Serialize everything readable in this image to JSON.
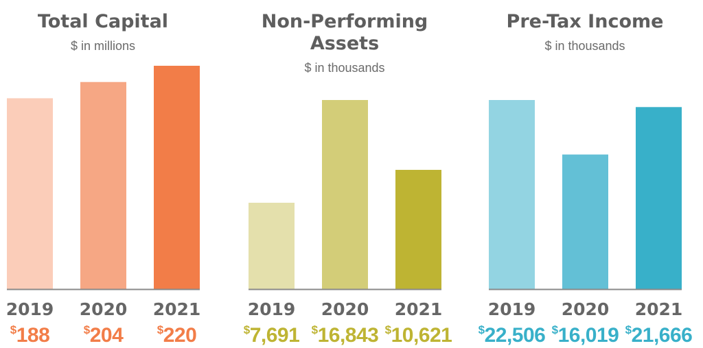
{
  "chart_data": [
    {
      "type": "bar",
      "title": "Total Capital",
      "subtitle": "$ in millions",
      "categories": [
        "2019",
        "2020",
        "2021"
      ],
      "values": [
        188,
        204,
        220
      ],
      "value_labels": [
        "188",
        "204",
        "220"
      ],
      "currency_symbol": "$",
      "colors": [
        "#FBCDB9",
        "#F6A784",
        "#F27D48"
      ],
      "label_color": "#F27D48"
    },
    {
      "type": "bar",
      "title": "Non-Performing Assets",
      "title_lines": [
        "Non-Performing",
        "Assets"
      ],
      "subtitle": "$ in thousands",
      "categories": [
        "2019",
        "2020",
        "2021"
      ],
      "values": [
        7691,
        16843,
        10621
      ],
      "value_labels": [
        "7,691",
        "16,843",
        "10,621"
      ],
      "currency_symbol": "$",
      "colors": [
        "#E4E0AC",
        "#D3CD78",
        "#BEB433"
      ],
      "label_color": "#BEB433"
    },
    {
      "type": "bar",
      "title": "Pre-Tax Income",
      "subtitle": "$ in thousands",
      "categories": [
        "2019",
        "2020",
        "2021"
      ],
      "values": [
        22506,
        16019,
        21666
      ],
      "value_labels": [
        "22,506",
        "16,019",
        "21,666"
      ],
      "currency_symbol": "$",
      "colors": [
        "#93D4E2",
        "#63C0D6",
        "#38B0C9"
      ],
      "label_color": "#38B0C9"
    }
  ]
}
